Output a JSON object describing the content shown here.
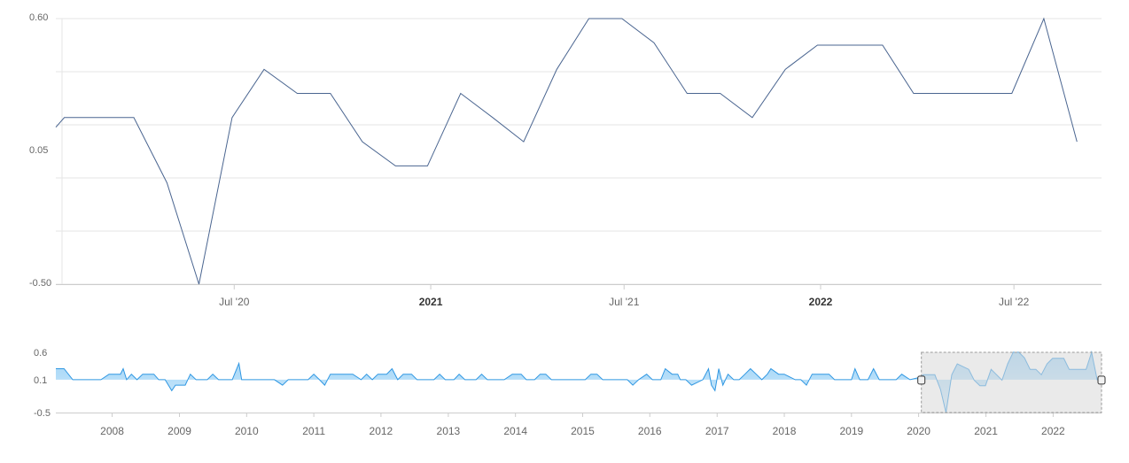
{
  "colors": {
    "main_line": "#4a6590",
    "nav_line": "#2f97e2",
    "nav_fill_top": "#9fd3f7",
    "nav_fill_bottom": "#d3ecfb",
    "grid": "#e6e6e6",
    "axis": "#cccccc",
    "selection_fill": "#d9d9d9",
    "selection_border": "#999999",
    "handle_fill": "#f2f2f2",
    "handle_stroke": "#333333"
  },
  "chart_data": [
    {
      "type": "line",
      "title": "",
      "xlabel": "",
      "ylabel": "",
      "ylim": [
        -0.5,
        0.6
      ],
      "yticks": [
        "0.60",
        "0.05",
        "-0.50"
      ],
      "xticks": [
        {
          "date": "2020-07-01",
          "label": "Jul '20",
          "bold": false
        },
        {
          "date": "2021-01-01",
          "label": "2021",
          "bold": true
        },
        {
          "date": "2021-07-01",
          "label": "Jul '21",
          "bold": false
        },
        {
          "date": "2022-01-01",
          "label": "2022",
          "bold": true
        },
        {
          "date": "2022-07-01",
          "label": "Jul '22",
          "bold": false
        }
      ],
      "xrange": [
        "2020-01-16",
        "2022-09-21"
      ],
      "grid": true,
      "series": [
        {
          "points": [
            [
              "2020-01-16",
              0.15
            ],
            [
              "2020-01-24",
              0.19
            ],
            [
              "2020-02-29",
              0.19
            ],
            [
              "2020-03-29",
              0.19
            ],
            [
              "2020-04-29",
              -0.08
            ],
            [
              "2020-05-29",
              -0.5
            ],
            [
              "2020-06-29",
              0.19
            ],
            [
              "2020-07-29",
              0.39
            ],
            [
              "2020-08-29",
              0.29
            ],
            [
              "2020-09-29",
              0.29
            ],
            [
              "2020-10-29",
              0.09
            ],
            [
              "2020-11-29",
              -0.01
            ],
            [
              "2020-12-29",
              -0.01
            ],
            [
              "2021-01-29",
              0.29
            ],
            [
              "2021-02-28",
              0.19
            ],
            [
              "2021-03-29",
              0.09
            ],
            [
              "2021-04-29",
              0.39
            ],
            [
              "2021-05-29",
              0.6
            ],
            [
              "2021-06-29",
              0.6
            ],
            [
              "2021-07-29",
              0.5
            ],
            [
              "2021-08-29",
              0.29
            ],
            [
              "2021-09-29",
              0.29
            ],
            [
              "2021-10-29",
              0.19
            ],
            [
              "2021-11-29",
              0.39
            ],
            [
              "2021-12-29",
              0.49
            ],
            [
              "2022-01-29",
              0.49
            ],
            [
              "2022-02-28",
              0.49
            ],
            [
              "2022-03-29",
              0.29
            ],
            [
              "2022-04-29",
              0.29
            ],
            [
              "2022-05-29",
              0.29
            ],
            [
              "2022-06-29",
              0.29
            ],
            [
              "2022-07-29",
              0.6
            ],
            [
              "2022-08-29",
              0.09
            ]
          ]
        }
      ]
    },
    {
      "type": "area",
      "title": "",
      "ylim": [
        -0.5,
        0.6
      ],
      "yticks": [
        "0.6",
        "0.1",
        "-0.5"
      ],
      "xticks": [
        "2008",
        "2009",
        "2010",
        "2011",
        "2012",
        "2013",
        "2014",
        "2015",
        "2016",
        "2017",
        "2018",
        "2019",
        "2020",
        "2021",
        "2022"
      ],
      "xrange": [
        "2007-03-01",
        "2022-09-21"
      ],
      "selection": [
        "2020-01-16",
        "2022-09-21"
      ],
      "series": [
        {
          "points": [
            [
              "2007-03-01",
              0.3
            ],
            [
              "2007-04-15",
              0.3
            ],
            [
              "2007-06-01",
              0.1
            ],
            [
              "2007-09-01",
              0.1
            ],
            [
              "2007-11-01",
              0.1
            ],
            [
              "2007-12-15",
              0.2
            ],
            [
              "2008-01-15",
              0.2
            ],
            [
              "2008-02-15",
              0.2
            ],
            [
              "2008-03-01",
              0.3
            ],
            [
              "2008-03-20",
              0.1
            ],
            [
              "2008-04-15",
              0.2
            ],
            [
              "2008-05-15",
              0.1
            ],
            [
              "2008-06-15",
              0.2
            ],
            [
              "2008-08-15",
              0.2
            ],
            [
              "2008-09-10",
              0.1
            ],
            [
              "2008-10-15",
              0.1
            ],
            [
              "2008-11-20",
              -0.1
            ],
            [
              "2008-12-10",
              0.0
            ],
            [
              "2009-02-01",
              0.0
            ],
            [
              "2009-03-01",
              0.2
            ],
            [
              "2009-04-01",
              0.1
            ],
            [
              "2009-06-01",
              0.1
            ],
            [
              "2009-07-01",
              0.2
            ],
            [
              "2009-08-01",
              0.1
            ],
            [
              "2009-10-15",
              0.1
            ],
            [
              "2009-11-20",
              0.4
            ],
            [
              "2009-12-05",
              0.1
            ],
            [
              "2010-03-01",
              0.1
            ],
            [
              "2010-06-01",
              0.1
            ],
            [
              "2010-07-15",
              0.0
            ],
            [
              "2010-08-15",
              0.1
            ],
            [
              "2010-12-01",
              0.1
            ],
            [
              "2011-01-01",
              0.2
            ],
            [
              "2011-02-01",
              0.1
            ],
            [
              "2011-03-01",
              0.0
            ],
            [
              "2011-04-01",
              0.2
            ],
            [
              "2011-08-01",
              0.2
            ],
            [
              "2011-09-15",
              0.1
            ],
            [
              "2011-10-15",
              0.2
            ],
            [
              "2011-11-15",
              0.1
            ],
            [
              "2011-12-15",
              0.2
            ],
            [
              "2012-02-01",
              0.2
            ],
            [
              "2012-03-01",
              0.3
            ],
            [
              "2012-04-01",
              0.1
            ],
            [
              "2012-05-01",
              0.2
            ],
            [
              "2012-06-15",
              0.2
            ],
            [
              "2012-07-15",
              0.1
            ],
            [
              "2012-10-15",
              0.1
            ],
            [
              "2012-11-15",
              0.2
            ],
            [
              "2012-12-15",
              0.1
            ],
            [
              "2013-02-01",
              0.1
            ],
            [
              "2013-03-01",
              0.2
            ],
            [
              "2013-04-01",
              0.1
            ],
            [
              "2013-06-01",
              0.1
            ],
            [
              "2013-07-01",
              0.2
            ],
            [
              "2013-08-01",
              0.1
            ],
            [
              "2013-11-01",
              0.1
            ],
            [
              "2013-12-15",
              0.2
            ],
            [
              "2014-02-01",
              0.2
            ],
            [
              "2014-03-01",
              0.1
            ],
            [
              "2014-04-15",
              0.1
            ],
            [
              "2014-05-15",
              0.2
            ],
            [
              "2014-06-15",
              0.2
            ],
            [
              "2014-07-15",
              0.1
            ],
            [
              "2015-01-15",
              0.1
            ],
            [
              "2015-02-15",
              0.2
            ],
            [
              "2015-03-20",
              0.2
            ],
            [
              "2015-04-20",
              0.1
            ],
            [
              "2015-08-01",
              0.1
            ],
            [
              "2015-09-01",
              0.1
            ],
            [
              "2015-10-01",
              0.0
            ],
            [
              "2015-11-01",
              0.1
            ],
            [
              "2015-12-15",
              0.2
            ],
            [
              "2016-01-15",
              0.1
            ],
            [
              "2016-03-01",
              0.1
            ],
            [
              "2016-03-25",
              0.3
            ],
            [
              "2016-05-01",
              0.2
            ],
            [
              "2016-06-01",
              0.2
            ],
            [
              "2016-06-15",
              0.1
            ],
            [
              "2016-07-15",
              0.1
            ],
            [
              "2016-08-15",
              0.0
            ],
            [
              "2016-10-15",
              0.1
            ],
            [
              "2016-11-15",
              0.3
            ],
            [
              "2016-12-01",
              0.0
            ],
            [
              "2016-12-20",
              -0.1
            ],
            [
              "2017-01-10",
              0.3
            ],
            [
              "2017-02-01",
              0.0
            ],
            [
              "2017-03-01",
              0.2
            ],
            [
              "2017-04-01",
              0.1
            ],
            [
              "2017-05-01",
              0.1
            ],
            [
              "2017-06-01",
              0.2
            ],
            [
              "2017-07-01",
              0.3
            ],
            [
              "2017-08-01",
              0.2
            ],
            [
              "2017-09-01",
              0.1
            ],
            [
              "2017-10-01",
              0.2
            ],
            [
              "2017-10-20",
              0.3
            ],
            [
              "2017-12-01",
              0.2
            ],
            [
              "2018-01-01",
              0.2
            ],
            [
              "2018-03-01",
              0.1
            ],
            [
              "2018-04-01",
              0.1
            ],
            [
              "2018-05-01",
              0.0
            ],
            [
              "2018-06-01",
              0.2
            ],
            [
              "2018-09-01",
              0.2
            ],
            [
              "2018-10-01",
              0.1
            ],
            [
              "2018-12-01",
              0.1
            ],
            [
              "2019-01-01",
              0.1
            ],
            [
              "2019-01-20",
              0.3
            ],
            [
              "2019-02-15",
              0.1
            ],
            [
              "2019-04-01",
              0.1
            ],
            [
              "2019-05-01",
              0.3
            ],
            [
              "2019-06-01",
              0.1
            ],
            [
              "2019-09-01",
              0.1
            ],
            [
              "2019-10-01",
              0.2
            ],
            [
              "2019-11-15",
              0.1
            ],
            [
              "2020-01-16",
              0.15
            ],
            [
              "2020-01-24",
              0.19
            ],
            [
              "2020-03-29",
              0.19
            ],
            [
              "2020-04-29",
              -0.08
            ],
            [
              "2020-05-29",
              -0.5
            ],
            [
              "2020-06-29",
              0.19
            ],
            [
              "2020-07-29",
              0.39
            ],
            [
              "2020-09-29",
              0.29
            ],
            [
              "2020-10-29",
              0.09
            ],
            [
              "2020-11-29",
              -0.01
            ],
            [
              "2020-12-29",
              -0.01
            ],
            [
              "2021-01-29",
              0.29
            ],
            [
              "2021-02-28",
              0.19
            ],
            [
              "2021-03-29",
              0.09
            ],
            [
              "2021-04-29",
              0.39
            ],
            [
              "2021-05-29",
              0.6
            ],
            [
              "2021-06-29",
              0.6
            ],
            [
              "2021-07-29",
              0.5
            ],
            [
              "2021-08-29",
              0.29
            ],
            [
              "2021-09-29",
              0.29
            ],
            [
              "2021-10-29",
              0.19
            ],
            [
              "2021-11-29",
              0.39
            ],
            [
              "2021-12-29",
              0.49
            ],
            [
              "2022-02-28",
              0.49
            ],
            [
              "2022-03-29",
              0.29
            ],
            [
              "2022-06-29",
              0.29
            ],
            [
              "2022-07-29",
              0.6
            ],
            [
              "2022-08-29",
              0.09
            ]
          ]
        }
      ]
    }
  ]
}
